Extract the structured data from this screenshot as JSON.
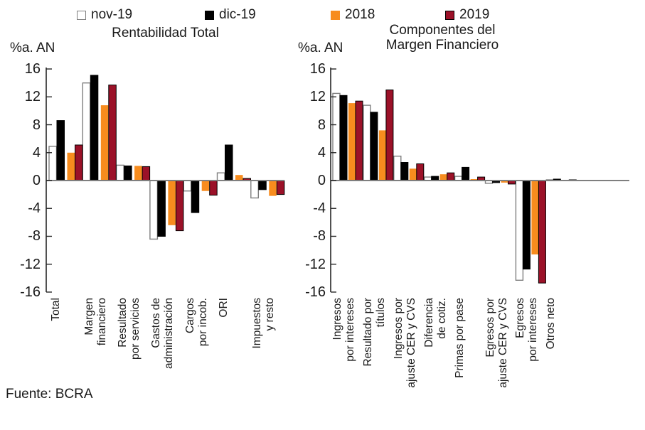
{
  "legend": {
    "series": [
      {
        "label": "nov-19",
        "color": "#FFFFFF",
        "border": "#7F7F7F"
      },
      {
        "label": "dic-19",
        "color": "#000000",
        "border": "#000000"
      },
      {
        "label": "2018",
        "color": "#F78C1E",
        "border": null
      },
      {
        "label": "2019",
        "color": "#9B1128",
        "border": "#000000"
      }
    ]
  },
  "chart_data": [
    {
      "type": "bar",
      "title": "Rentabilidad Total",
      "ylabel": "%a. AN",
      "ylim": [
        -16,
        16
      ],
      "ytick_step": 4,
      "grid": false,
      "legend_position": "top",
      "categories": [
        "Total",
        "Margen\nfinanciero",
        "Resultado\npor servicios",
        "Gastos de\nadministración",
        "Cargos\npor incob.",
        "ORI",
        "Impuestos\ny resto"
      ],
      "series": [
        {
          "name": "nov-19",
          "values": [
            4.9,
            14.0,
            2.2,
            -8.4,
            -1.5,
            1.1,
            -2.5
          ]
        },
        {
          "name": "dic-19",
          "values": [
            8.6,
            15.1,
            2.1,
            -8.0,
            -4.6,
            5.1,
            -1.3
          ]
        },
        {
          "name": "2018",
          "values": [
            4.0,
            10.8,
            2.1,
            -6.4,
            -1.5,
            0.8,
            -2.2
          ]
        },
        {
          "name": "2019",
          "values": [
            5.1,
            13.7,
            2.0,
            -7.2,
            -2.1,
            0.3,
            -2.0
          ]
        }
      ]
    },
    {
      "type": "bar",
      "title": "Componentes del\nMargen Financiero",
      "ylabel": "%a. AN",
      "ylim": [
        -16,
        16
      ],
      "ytick_step": 4,
      "grid": false,
      "legend_position": "top",
      "categories": [
        "Ingresos\npor intereses",
        "Resultado por\ntítulos",
        "Ingresos por\najuste CER y CVS",
        "Diferencia\nde cotiz.",
        "Primas por pase",
        "Egresos por\najuste CER y CVS",
        "Egresos\npor intereses",
        "Otros neto"
      ],
      "series": [
        {
          "name": "nov-19",
          "values": [
            12.5,
            10.8,
            3.5,
            0.5,
            0.6,
            -0.4,
            -14.3,
            0.1
          ]
        },
        {
          "name": "dic-19",
          "values": [
            12.2,
            9.8,
            2.6,
            0.6,
            1.9,
            -0.3,
            -12.7,
            0.2
          ]
        },
        {
          "name": "2018",
          "values": [
            11.1,
            7.2,
            1.7,
            0.9,
            0.2,
            -0.3,
            -10.6,
            -0.1
          ]
        },
        {
          "name": "2019",
          "values": [
            11.4,
            13.0,
            2.4,
            1.1,
            0.5,
            -0.5,
            -14.7,
            0.1
          ]
        }
      ]
    }
  ],
  "footer": {
    "source": "Fuente: BCRA"
  }
}
